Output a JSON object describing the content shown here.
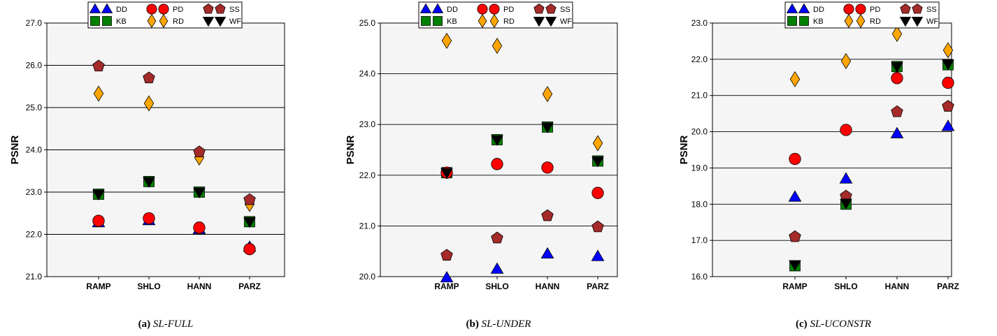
{
  "legend": {
    "entries": [
      {
        "key": "DD",
        "label": "DD",
        "color": "#0000ff",
        "marker": "triangle-up"
      },
      {
        "key": "KB",
        "label": "KB",
        "color": "#008000",
        "marker": "square"
      },
      {
        "key": "PD",
        "label": "PD",
        "color": "#ff0000",
        "marker": "circle"
      },
      {
        "key": "RD",
        "label": "RD",
        "color": "#ffa500",
        "marker": "diamond"
      },
      {
        "key": "SS",
        "label": "SS",
        "color": "#a52a2a",
        "marker": "pentagon"
      },
      {
        "key": "WF",
        "label": "WF",
        "color": "#000000",
        "marker": "triangle-down"
      }
    ]
  },
  "chart_data": [
    {
      "type": "scatter",
      "caption_letter": "(a)",
      "caption_name": "SL-FULL",
      "ylabel": "PSNR",
      "ylim": [
        21.0,
        27.0
      ],
      "yticks": [
        "21.0",
        "22.0",
        "23.0",
        "24.0",
        "25.0",
        "26.0",
        "27.0"
      ],
      "categories": [
        "RAMP",
        "SHLO",
        "HANN",
        "PARZ"
      ],
      "grid": "horizontal",
      "series": [
        {
          "key": "DD",
          "values": [
            22.28,
            22.33,
            22.12,
            21.7
          ]
        },
        {
          "key": "KB",
          "values": [
            22.95,
            23.25,
            23.0,
            22.3
          ]
        },
        {
          "key": "PD",
          "values": [
            22.32,
            22.38,
            22.16,
            21.65
          ]
        },
        {
          "key": "RD",
          "values": [
            25.33,
            25.1,
            23.82,
            22.72
          ]
        },
        {
          "key": "SS",
          "values": [
            25.98,
            25.7,
            23.95,
            22.82
          ]
        },
        {
          "key": "WF",
          "values": [
            22.95,
            23.25,
            23.0,
            22.3
          ]
        }
      ]
    },
    {
      "type": "scatter",
      "caption_letter": "(b)",
      "caption_name": "SL-UNDER",
      "ylabel": "PSNR",
      "ylim": [
        20.0,
        25.0
      ],
      "yticks": [
        "20.0",
        "21.0",
        "22.0",
        "23.0",
        "24.0",
        "25.0"
      ],
      "categories": [
        "RAMP",
        "SHLO",
        "HANN",
        "PARZ"
      ],
      "grid": "horizontal",
      "series": [
        {
          "key": "DD",
          "values": [
            19.98,
            20.15,
            20.45,
            20.4
          ]
        },
        {
          "key": "KB",
          "values": [
            22.05,
            22.7,
            22.95,
            22.28
          ]
        },
        {
          "key": "PD",
          "values": [
            22.05,
            22.22,
            22.15,
            21.65
          ]
        },
        {
          "key": "RD",
          "values": [
            24.65,
            24.55,
            23.6,
            22.63
          ]
        },
        {
          "key": "SS",
          "values": [
            20.42,
            20.76,
            21.2,
            20.98
          ]
        },
        {
          "key": "WF",
          "values": [
            22.05,
            22.7,
            22.95,
            22.28
          ]
        }
      ]
    },
    {
      "type": "scatter",
      "caption_letter": "(c)",
      "caption_name": "SL-UCONSTR",
      "ylabel": "PSNR",
      "ylim": [
        16.0,
        23.0
      ],
      "yticks": [
        "16.0",
        "17.0",
        "18.0",
        "19.0",
        "20.0",
        "21.0",
        "22.0",
        "23.0"
      ],
      "categories": [
        "RAMP",
        "SHLO",
        "HANN",
        "PARZ"
      ],
      "grid": "horizontal",
      "series": [
        {
          "key": "DD",
          "values": [
            18.2,
            18.7,
            19.95,
            20.15
          ]
        },
        {
          "key": "KB",
          "values": [
            16.3,
            18.0,
            21.8,
            21.85
          ]
        },
        {
          "key": "PD",
          "values": [
            19.25,
            20.05,
            21.48,
            21.35
          ]
        },
        {
          "key": "RD",
          "values": [
            21.45,
            21.95,
            22.7,
            22.25
          ]
        },
        {
          "key": "SS",
          "values": [
            17.1,
            18.22,
            20.55,
            20.7
          ]
        },
        {
          "key": "WF",
          "values": [
            16.33,
            18.03,
            21.8,
            21.87
          ]
        }
      ]
    }
  ]
}
